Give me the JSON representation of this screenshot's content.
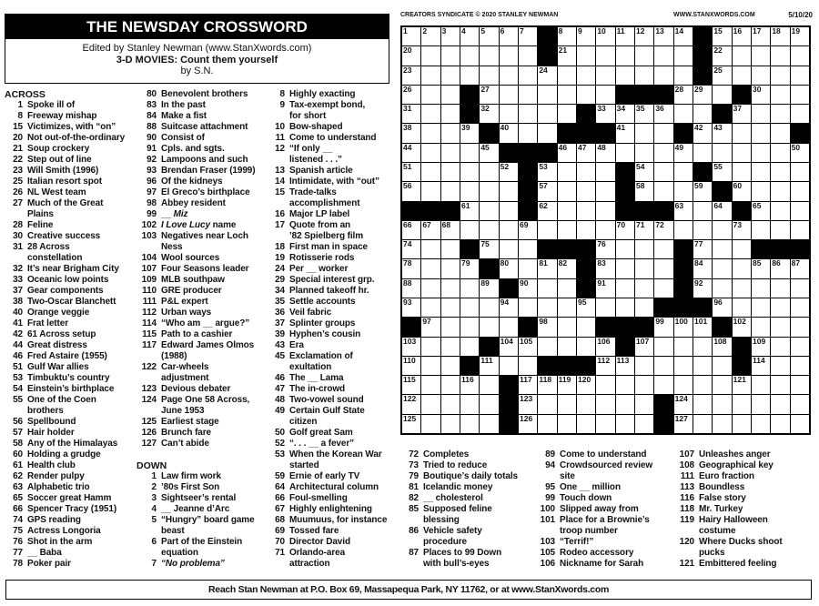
{
  "header": {
    "title": "THE NEWSDAY CROSSWORD",
    "editor": "Edited by Stanley Newman (www.StanXwords.com)",
    "theme": "3-D MOVIES: Count them yourself",
    "byline": "by S.N."
  },
  "credits": {
    "syndicate": "CREATORS SYNDICATE © 2020 STANLEY NEWMAN",
    "website": "WWW.STANXWORDS.COM",
    "date": "5/10/20"
  },
  "grid": {
    "rows": [
      ".......#.......#.....",
      ".......#.......#.....",
      "...............#.....",
      "...#.......###...#...",
      "...#.....#......#....",
      "....#...###...#.....#",
      ".....###.............",
      "......#....#...#.....",
      "......#....#....#....",
      "###...#....###...#...",
      ".....................",
      "...#...###....#...###",
      "....#....#....#......",
      ".....#...#....#......",
      ".............###.....",
      "#.....#...###...#....",
      "....#......#.....#...",
      "...#...###.......#...",
      ".....#...............",
      ".....#.......#.......",
      ".....#.......#......."
    ]
  },
  "clue_columns": [
    [
      {
        "heading": "ACROSS"
      },
      {
        "n": "1",
        "t": "Spoke ill of"
      },
      {
        "n": "8",
        "t": "Freeway mishap"
      },
      {
        "n": "15",
        "t": "Victimizes, with “on”"
      },
      {
        "n": "20",
        "t": "Not out-of-the-ordinary"
      },
      {
        "n": "21",
        "t": "Soup crockery"
      },
      {
        "n": "22",
        "t": "Step out of line"
      },
      {
        "n": "23",
        "t": "Will Smith (1996)"
      },
      {
        "n": "25",
        "t": "Italian resort spot"
      },
      {
        "n": "26",
        "t": "NL West team"
      },
      {
        "n": "27",
        "t": "Much of the Great\nPlains"
      },
      {
        "n": "28",
        "t": "Feline"
      },
      {
        "n": "30",
        "t": "Creative success"
      },
      {
        "n": "31",
        "t": "28 Across\nconstellation"
      },
      {
        "n": "32",
        "t": "It’s near Brigham City"
      },
      {
        "n": "33",
        "t": "Oceanic low points"
      },
      {
        "n": "37",
        "t": "Gear components"
      },
      {
        "n": "38",
        "t": "Two-Oscar Blanchett"
      },
      {
        "n": "40",
        "t": "Orange veggie"
      },
      {
        "n": "41",
        "t": "Frat letter"
      },
      {
        "n": "42",
        "t": "61 Across setup"
      },
      {
        "n": "44",
        "t": "Great distress"
      },
      {
        "n": "46",
        "t": "Fred Astaire (1955)"
      },
      {
        "n": "51",
        "t": "Gulf War allies"
      },
      {
        "n": "53",
        "t": "Timbuktu’s country"
      },
      {
        "n": "54",
        "t": "Einstein’s birthplace"
      },
      {
        "n": "55",
        "t": "One of the Coen\nbrothers"
      },
      {
        "n": "56",
        "t": "Spellbound"
      },
      {
        "n": "57",
        "t": "Hair holder"
      },
      {
        "n": "58",
        "t": "Any of the Himalayas"
      },
      {
        "n": "60",
        "t": "Holding a grudge"
      },
      {
        "n": "61",
        "t": "Health club"
      },
      {
        "n": "62",
        "t": "Render pulpy"
      },
      {
        "n": "63",
        "t": "Alphabetic trio"
      },
      {
        "n": "65",
        "t": "Soccer great Hamm"
      },
      {
        "n": "66",
        "t": "Spencer Tracy (1951)"
      },
      {
        "n": "74",
        "t": "GPS reading"
      },
      {
        "n": "75",
        "t": "Actress Longoria"
      },
      {
        "n": "76",
        "t": "Shot in the arm"
      },
      {
        "n": "77",
        "t": "__ Baba"
      },
      {
        "n": "78",
        "t": "Poker pair"
      }
    ],
    [
      {
        "n": "80",
        "t": "Benevolent brothers"
      },
      {
        "n": "83",
        "t": "In the past"
      },
      {
        "n": "84",
        "t": "Make a fist"
      },
      {
        "n": "88",
        "t": "Suitcase attachment"
      },
      {
        "n": "90",
        "t": "Consist of"
      },
      {
        "n": "91",
        "t": "Cpls. and sgts."
      },
      {
        "n": "92",
        "t": "Lampoons and such"
      },
      {
        "n": "93",
        "t": "Brendan Fraser (1999)"
      },
      {
        "n": "96",
        "t": "Of the kidneys"
      },
      {
        "n": "97",
        "t": "El Greco’s birthplace"
      },
      {
        "n": "98",
        "t": "Abbey resident"
      },
      {
        "n": "99",
        "t": "__ ",
        "i": "Miz"
      },
      {
        "n": "102",
        "t": "",
        "i": "I Love Lucy",
        "a": " name"
      },
      {
        "n": "103",
        "t": "Negatives near Loch\nNess"
      },
      {
        "n": "104",
        "t": "Wool sources"
      },
      {
        "n": "107",
        "t": "Four Seasons leader"
      },
      {
        "n": "109",
        "t": "MLB southpaw"
      },
      {
        "n": "110",
        "t": "GRE producer"
      },
      {
        "n": "111",
        "t": "P&L expert"
      },
      {
        "n": "112",
        "t": "Urban ways"
      },
      {
        "n": "114",
        "t": "“Who am __ argue?”"
      },
      {
        "n": "115",
        "t": "Path to a cashier"
      },
      {
        "n": "117",
        "t": "Edward James Olmos\n(1988)"
      },
      {
        "n": "122",
        "t": "Car-wheels\nadjustment"
      },
      {
        "n": "123",
        "t": "Devious debater"
      },
      {
        "n": "124",
        "t": "Page One 58 Across,\nJune 1953"
      },
      {
        "n": "125",
        "t": "Earliest stage"
      },
      {
        "n": "126",
        "t": "Brunch fare"
      },
      {
        "n": "127",
        "t": "Can’t abide"
      },
      {
        "gap": true
      },
      {
        "heading": "DOWN"
      },
      {
        "n": "1",
        "t": "Law firm work"
      },
      {
        "n": "2",
        "t": "’80s First Son"
      },
      {
        "n": "3",
        "t": "Sightseer’s rental"
      },
      {
        "n": "4",
        "t": "__ Jeanne d’Arc"
      },
      {
        "n": "5",
        "t": "“Hungry” board game\nbeast"
      },
      {
        "n": "6",
        "t": "Part of the Einstein\nequation"
      },
      {
        "n": "7",
        "t": "",
        "i": "“No problema”"
      }
    ],
    [
      {
        "n": "8",
        "t": "Highly exacting"
      },
      {
        "n": "9",
        "t": "Tax-exempt bond,\nfor short"
      },
      {
        "n": "10",
        "t": "Bow-shaped"
      },
      {
        "n": "11",
        "t": "Come to understand"
      },
      {
        "n": "12",
        "t": "“If only __\nlistened . . .”"
      },
      {
        "n": "13",
        "t": "Spanish article"
      },
      {
        "n": "14",
        "t": "Intimidate, with “out”"
      },
      {
        "n": "15",
        "t": "Trade-talks\naccomplishment"
      },
      {
        "n": "16",
        "t": "Major LP label"
      },
      {
        "n": "17",
        "t": "Quote from an\n’82 Spielberg film"
      },
      {
        "n": "18",
        "t": "First man in space"
      },
      {
        "n": "19",
        "t": "Rotisserie rods"
      },
      {
        "n": "24",
        "t": "Per __ worker"
      },
      {
        "n": "29",
        "t": "Special interest grp."
      },
      {
        "n": "34",
        "t": "Planned takeoff hr."
      },
      {
        "n": "35",
        "t": "Settle accounts"
      },
      {
        "n": "36",
        "t": "Veil fabric"
      },
      {
        "n": "37",
        "t": "Splinter groups"
      },
      {
        "n": "39",
        "t": "Hyphen’s cousin"
      },
      {
        "n": "43",
        "t": "Era"
      },
      {
        "n": "45",
        "t": "Exclamation of\nexultation"
      },
      {
        "n": "46",
        "t": "The __ Lama"
      },
      {
        "n": "47",
        "t": "The in-crowd"
      },
      {
        "n": "48",
        "t": "Two-vowel sound"
      },
      {
        "n": "49",
        "t": "Certain Gulf State\ncitizen"
      },
      {
        "n": "50",
        "t": "Golf great Sam"
      },
      {
        "n": "52",
        "t": "“. . . __ a fever”"
      },
      {
        "n": "53",
        "t": "When the Korean War\nstarted"
      },
      {
        "n": "59",
        "t": "Ernie of early TV"
      },
      {
        "n": "64",
        "t": "Architectural column"
      },
      {
        "n": "66",
        "t": "Foul-smelling"
      },
      {
        "n": "67",
        "t": "Highly enlightening"
      },
      {
        "n": "68",
        "t": "Muumuus, for instance"
      },
      {
        "n": "69",
        "t": "Tossed fare"
      },
      {
        "n": "70",
        "t": "Director David"
      },
      {
        "n": "71",
        "t": "Orlando-area\nattraction"
      }
    ],
    [
      {
        "n": "72",
        "t": "Completes"
      },
      {
        "n": "73",
        "t": "Tried to reduce"
      },
      {
        "n": "79",
        "t": "Boutique’s daily totals"
      },
      {
        "n": "81",
        "t": "Icelandic money"
      },
      {
        "n": "82",
        "t": "__ cholesterol"
      },
      {
        "n": "85",
        "t": "Supposed feline\nblessing"
      },
      {
        "n": "86",
        "t": "Vehicle safety\nprocedure"
      },
      {
        "n": "87",
        "t": "Places to 99 Down\nwith bull’s-eyes"
      }
    ],
    [
      {
        "n": "89",
        "t": "Come to understand"
      },
      {
        "n": "94",
        "t": "Crowdsourced review\nsite"
      },
      {
        "n": "95",
        "t": "One __ million"
      },
      {
        "n": "99",
        "t": "Touch down"
      },
      {
        "n": "100",
        "t": "Slipped away from"
      },
      {
        "n": "101",
        "t": "Place for a Brownie’s\ntroop number"
      },
      {
        "n": "103",
        "t": "“Terrif!”"
      },
      {
        "n": "105",
        "t": "Rodeo accessory"
      },
      {
        "n": "106",
        "t": "Nickname for Sarah"
      }
    ],
    [
      {
        "n": "107",
        "t": "Unleashes anger"
      },
      {
        "n": "108",
        "t": "Geographical key"
      },
      {
        "n": "111",
        "t": "Euro fraction"
      },
      {
        "n": "113",
        "t": "Boundless"
      },
      {
        "n": "116",
        "t": "False story"
      },
      {
        "n": "118",
        "t": "Mr. Turkey"
      },
      {
        "n": "119",
        "t": "Hairy Halloween\ncostume"
      },
      {
        "n": "120",
        "t": "Where Ducks shoot\npucks"
      },
      {
        "n": "121",
        "t": "Embittered feeling"
      }
    ]
  ],
  "footer": {
    "text": "Reach Stan Newman at P.O. Box 69, Massapequa Park, NY 11762, or at www.StanXwords.com"
  }
}
